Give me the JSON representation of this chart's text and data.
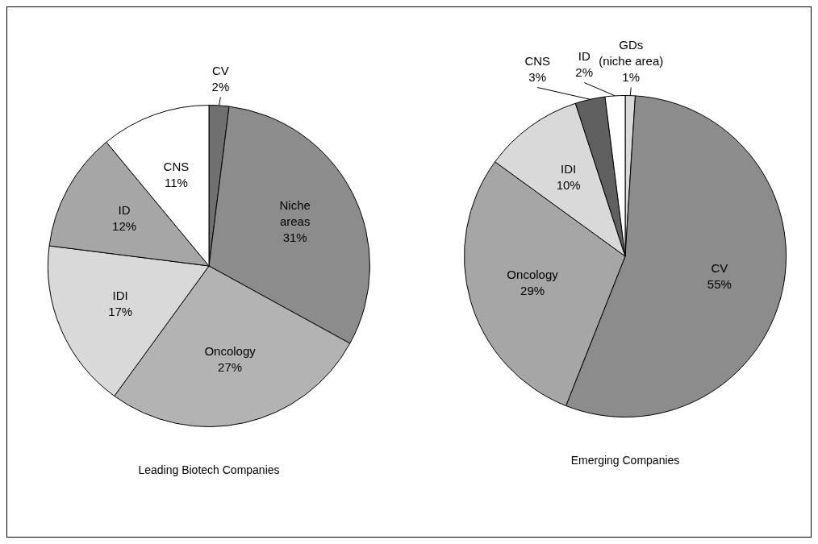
{
  "chart_data": [
    {
      "type": "pie",
      "title": "Leading Biotech Companies",
      "categories": [
        "CV",
        "Niche areas",
        "Oncology",
        "IDI",
        "ID",
        "CNS"
      ],
      "values": [
        2,
        31,
        27,
        17,
        12,
        11
      ],
      "value_labels": [
        "2%",
        "31%",
        "27%",
        "17%",
        "12%",
        "11%"
      ],
      "colors": [
        "#707070",
        "#8c8c8c",
        "#b3b3b3",
        "#d9d9d9",
        "#a6a6a6",
        "#ffffff"
      ],
      "legend": false
    },
    {
      "type": "pie",
      "title": "Emerging Companies",
      "categories": [
        "GDs (niche area)",
        "CV",
        "Oncology",
        "IDI",
        "CNS",
        "ID"
      ],
      "values": [
        1,
        55,
        29,
        10,
        3,
        2
      ],
      "value_labels": [
        "1%",
        "55%",
        "29%",
        "10%",
        "3%",
        "2%"
      ],
      "colors": [
        "#d9d9d9",
        "#8c8c8c",
        "#a6a6a6",
        "#d9d9d9",
        "#606060",
        "#ffffff"
      ],
      "legend": false
    }
  ]
}
